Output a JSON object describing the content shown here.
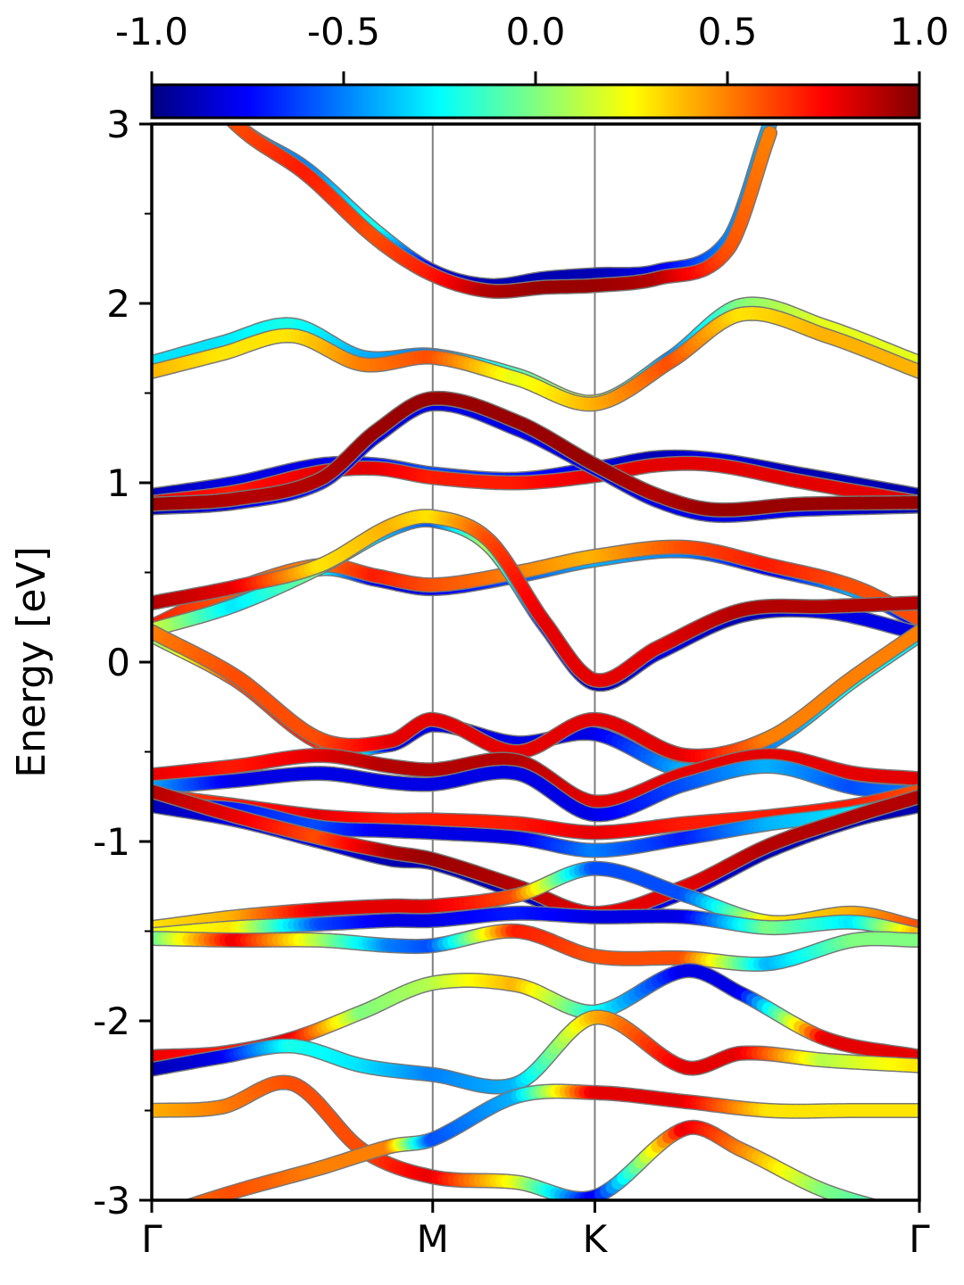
{
  "chart_data": {
    "type": "line",
    "title": "",
    "xlabel": "",
    "ylabel": "Energy [eV]",
    "ylim": [
      -3,
      3
    ],
    "yticks": [
      -3,
      -2,
      -1,
      0,
      1,
      2,
      3
    ],
    "yticks_minor": [
      -2.5,
      -1.5,
      -0.5,
      0.5,
      1.5,
      2.5
    ],
    "kpath": {
      "labels": [
        "Γ",
        "M",
        "K",
        "Γ"
      ],
      "positions": [
        0,
        1,
        1.577,
        2.732
      ]
    },
    "colorbar": {
      "colormap": "jet",
      "range": [
        -1.0,
        1.0
      ],
      "ticks": [
        "-1.0",
        "-0.5",
        "0.0",
        "0.5",
        "1.0"
      ],
      "placement": "top"
    },
    "grid": false,
    "series": [
      {
        "x": [
          0.1,
          0.3,
          0.55,
          0.8,
          1.0,
          1.2,
          1.4,
          1.577,
          1.8,
          2.05,
          2.2
        ],
        "y": [
          3.4,
          3.0,
          2.75,
          2.4,
          2.18,
          2.1,
          2.14,
          2.16,
          2.18,
          2.35,
          3.0
        ],
        "c": [
          -0.6,
          -0.4,
          -0.5,
          -0.2,
          -0.8,
          -0.9,
          -0.9,
          -0.9,
          -0.8,
          -0.5,
          -0.4
        ]
      },
      {
        "x": [
          0.1,
          0.3,
          0.55,
          0.8,
          1.0,
          1.2,
          1.4,
          1.577,
          1.8,
          2.05,
          2.2
        ],
        "y": [
          3.4,
          3.0,
          2.72,
          2.36,
          2.16,
          2.07,
          2.09,
          2.1,
          2.14,
          2.3,
          2.95
        ],
        "c": [
          0.7,
          0.6,
          0.7,
          0.6,
          0.7,
          0.9,
          0.95,
          0.95,
          0.9,
          0.6,
          0.5
        ]
      },
      {
        "x": [
          0,
          0.25,
          0.5,
          0.75,
          1.0,
          1.3,
          1.577,
          1.85,
          2.1,
          2.4,
          2.732
        ],
        "y": [
          1.67,
          1.78,
          1.88,
          1.7,
          1.71,
          1.6,
          1.45,
          1.7,
          1.99,
          1.87,
          1.67
        ],
        "c": [
          -0.3,
          -0.3,
          -0.2,
          -0.4,
          -0.5,
          -0.1,
          0.2,
          -0.5,
          0.0,
          0.2,
          0.2
        ]
      },
      {
        "x": [
          0,
          0.25,
          0.5,
          0.75,
          1.0,
          1.3,
          1.577,
          1.85,
          2.1,
          2.4,
          2.732
        ],
        "y": [
          1.62,
          1.72,
          1.82,
          1.66,
          1.7,
          1.58,
          1.44,
          1.68,
          1.94,
          1.82,
          1.62
        ],
        "c": [
          0.4,
          0.3,
          0.3,
          0.5,
          0.6,
          0.2,
          0.4,
          0.6,
          0.3,
          0.4,
          0.4
        ]
      },
      {
        "x": [
          0,
          0.3,
          0.6,
          0.8,
          1.0,
          1.3,
          1.577,
          1.8,
          2.0,
          2.3,
          2.732
        ],
        "y": [
          0.93,
          1.0,
          1.1,
          1.1,
          1.05,
          1.02,
          1.08,
          1.14,
          1.13,
          1.05,
          0.93
        ],
        "c": [
          -0.9,
          -0.8,
          -0.8,
          -0.7,
          -0.6,
          -0.7,
          -0.8,
          -0.9,
          -0.8,
          -0.9,
          -0.9
        ]
      },
      {
        "x": [
          0,
          0.3,
          0.6,
          0.8,
          1.0,
          1.3,
          1.577,
          1.8,
          2.0,
          2.3,
          2.732
        ],
        "y": [
          0.89,
          0.95,
          1.06,
          1.08,
          1.03,
          1.0,
          1.04,
          1.1,
          1.1,
          1.01,
          0.89
        ],
        "c": [
          0.8,
          0.7,
          0.8,
          0.8,
          0.7,
          0.7,
          0.8,
          0.8,
          0.8,
          0.8,
          0.8
        ]
      },
      {
        "x": [
          0,
          0.3,
          0.6,
          0.8,
          1.0,
          1.3,
          1.577,
          1.8,
          2.0,
          2.3,
          2.732
        ],
        "y": [
          0.86,
          0.89,
          1.0,
          1.26,
          1.44,
          1.3,
          1.08,
          0.9,
          0.82,
          0.85,
          0.87
        ],
        "c": [
          -0.9,
          -0.8,
          -0.7,
          -0.8,
          -0.8,
          -0.8,
          -0.8,
          -0.8,
          -0.8,
          -0.8,
          -0.9
        ]
      },
      {
        "x": [
          0,
          0.3,
          0.6,
          0.8,
          1.0,
          1.3,
          1.577,
          1.8,
          2.0,
          2.3,
          2.732
        ],
        "y": [
          0.88,
          0.91,
          1.02,
          1.29,
          1.47,
          1.34,
          1.1,
          0.93,
          0.85,
          0.88,
          0.89
        ],
        "c": [
          0.95,
          0.9,
          0.9,
          0.95,
          0.95,
          0.95,
          0.95,
          0.9,
          0.95,
          0.95,
          0.95
        ]
      },
      {
        "x": [
          0,
          0.25,
          0.6,
          0.8,
          1.0,
          1.3,
          1.577,
          1.9,
          2.2,
          2.5,
          2.732
        ],
        "y": [
          0.18,
          0.35,
          0.52,
          0.46,
          0.41,
          0.48,
          0.57,
          0.62,
          0.52,
          0.4,
          0.22
        ],
        "c": [
          -0.8,
          -0.7,
          -0.2,
          -0.8,
          -0.8,
          -0.6,
          -0.4,
          -0.5,
          -0.8,
          -0.4,
          -0.8
        ]
      },
      {
        "x": [
          0,
          0.25,
          0.6,
          0.8,
          1.0,
          1.3,
          1.577,
          1.9,
          2.2,
          2.5,
          2.732
        ],
        "y": [
          0.2,
          0.38,
          0.54,
          0.48,
          0.43,
          0.5,
          0.59,
          0.64,
          0.54,
          0.42,
          0.24
        ],
        "c": [
          0.7,
          0.6,
          0.5,
          0.7,
          0.6,
          0.5,
          0.4,
          0.6,
          0.7,
          0.6,
          0.6
        ]
      },
      {
        "x": [
          0,
          0.3,
          0.6,
          0.85,
          1.0,
          1.2,
          1.4,
          1.577,
          1.8,
          2.1,
          2.4,
          2.732
        ],
        "y": [
          0.18,
          0.32,
          0.53,
          0.74,
          0.79,
          0.65,
          0.2,
          -0.12,
          0.05,
          0.26,
          0.28,
          0.16
        ],
        "c": [
          0.2,
          -0.3,
          0.0,
          -0.4,
          -0.6,
          0.1,
          -0.7,
          -0.9,
          -0.8,
          -0.9,
          -0.8,
          -0.8
        ]
      },
      {
        "x": [
          0,
          0.3,
          0.6,
          0.85,
          1.0,
          1.2,
          1.4,
          1.577,
          1.8,
          2.1,
          2.4,
          2.732
        ],
        "y": [
          0.33,
          0.42,
          0.54,
          0.76,
          0.81,
          0.68,
          0.22,
          -0.1,
          0.08,
          0.29,
          0.31,
          0.33
        ],
        "c": [
          0.9,
          0.8,
          0.3,
          0.4,
          0.3,
          0.6,
          0.8,
          0.8,
          0.8,
          0.9,
          0.9,
          0.9
        ]
      },
      {
        "x": [
          0,
          0.3,
          0.6,
          0.85,
          1.0,
          1.3,
          1.577,
          1.9,
          2.2,
          2.5,
          2.732
        ],
        "y": [
          0.15,
          -0.1,
          -0.45,
          -0.46,
          -0.35,
          -0.45,
          -0.4,
          -0.6,
          -0.45,
          -0.1,
          0.15
        ],
        "c": [
          0.0,
          0.6,
          0.7,
          -0.8,
          -0.8,
          -0.8,
          -0.8,
          -0.4,
          -0.5,
          -0.2,
          -0.3
        ]
      },
      {
        "x": [
          0,
          0.3,
          0.6,
          0.85,
          1.0,
          1.3,
          1.577,
          1.9,
          2.2,
          2.5,
          2.732
        ],
        "y": [
          0.17,
          -0.08,
          -0.43,
          -0.44,
          -0.32,
          -0.5,
          -0.32,
          -0.52,
          -0.42,
          -0.08,
          0.17
        ],
        "c": [
          0.5,
          0.6,
          0.6,
          0.8,
          0.8,
          0.8,
          0.8,
          0.8,
          0.5,
          0.5,
          0.5
        ]
      },
      {
        "x": [
          0,
          0.3,
          0.6,
          0.85,
          1.0,
          1.3,
          1.577,
          1.9,
          2.2,
          2.5,
          2.732
        ],
        "y": [
          -0.63,
          -0.58,
          -0.52,
          -0.58,
          -0.6,
          -0.55,
          -0.78,
          -0.62,
          -0.52,
          -0.62,
          -0.65
        ],
        "c": [
          0.8,
          0.7,
          0.8,
          0.9,
          0.9,
          0.9,
          0.8,
          0.8,
          0.8,
          0.8,
          0.8
        ]
      },
      {
        "x": [
          0,
          0.3,
          0.6,
          0.85,
          1.0,
          1.3,
          1.577,
          1.9,
          2.2,
          2.5,
          2.732
        ],
        "y": [
          -0.7,
          -0.66,
          -0.62,
          -0.67,
          -0.68,
          -0.62,
          -0.85,
          -0.68,
          -0.58,
          -0.7,
          -0.73
        ],
        "c": [
          -0.4,
          -0.8,
          -0.8,
          -0.8,
          -0.8,
          -0.8,
          -0.8,
          -0.6,
          -0.4,
          -0.6,
          -0.5
        ]
      },
      {
        "x": [
          0,
          0.3,
          0.6,
          0.85,
          1.0,
          1.3,
          1.577,
          1.9,
          2.2,
          2.5,
          2.732
        ],
        "y": [
          -0.74,
          -0.8,
          -0.86,
          -0.88,
          -0.88,
          -0.9,
          -0.95,
          -0.9,
          -0.86,
          -0.8,
          -0.72
        ],
        "c": [
          0.6,
          0.7,
          0.8,
          0.7,
          0.7,
          0.7,
          0.8,
          0.7,
          0.7,
          0.7,
          0.6
        ]
      },
      {
        "x": [
          0,
          0.3,
          0.6,
          0.85,
          1.0,
          1.3,
          1.577,
          1.9,
          2.2,
          2.5,
          2.732
        ],
        "y": [
          -0.8,
          -0.82,
          -0.92,
          -0.94,
          -0.95,
          -0.98,
          -1.05,
          -0.98,
          -0.9,
          -0.84,
          -0.76
        ],
        "c": [
          -0.8,
          -0.7,
          -0.6,
          -0.8,
          -0.8,
          -0.8,
          -0.5,
          -0.7,
          -0.4,
          -0.3,
          -0.4
        ]
      },
      {
        "x": [
          0,
          0.3,
          0.6,
          0.85,
          1.0,
          1.3,
          1.577,
          1.9,
          2.2,
          2.5,
          2.732
        ],
        "y": [
          -0.8,
          -0.88,
          -1.0,
          -1.1,
          -1.12,
          -1.28,
          -1.42,
          -1.28,
          -1.05,
          -0.88,
          -0.8
        ],
        "c": [
          -0.9,
          -0.8,
          -0.8,
          -0.9,
          -0.9,
          -0.9,
          -0.8,
          -0.8,
          -0.9,
          -0.9,
          -0.9
        ]
      },
      {
        "x": [
          0,
          0.3,
          0.6,
          0.85,
          1.0,
          1.3,
          1.577,
          1.9,
          2.2,
          2.5,
          2.732
        ],
        "y": [
          -0.72,
          -0.86,
          -0.98,
          -1.06,
          -1.1,
          -1.25,
          -1.4,
          -1.25,
          -1.02,
          -0.86,
          -0.75
        ],
        "c": [
          0.9,
          0.8,
          0.6,
          0.9,
          0.95,
          0.9,
          0.8,
          0.8,
          0.9,
          0.9,
          0.9
        ]
      },
      {
        "x": [
          0,
          0.3,
          0.6,
          0.85,
          1.0,
          1.3,
          1.577,
          1.9,
          2.2,
          2.5,
          2.732
        ],
        "y": [
          -1.48,
          -1.42,
          -1.38,
          -1.36,
          -1.36,
          -1.3,
          -1.15,
          -1.3,
          -1.45,
          -1.4,
          -1.48
        ],
        "c": [
          0.3,
          0.4,
          0.8,
          0.8,
          0.8,
          0.6,
          -0.6,
          -0.6,
          0.3,
          0.4,
          0.6
        ]
      },
      {
        "x": [
          0,
          0.3,
          0.6,
          0.85,
          1.0,
          1.3,
          1.577,
          1.9,
          2.2,
          2.5,
          2.732
        ],
        "y": [
          -1.52,
          -1.48,
          -1.46,
          -1.44,
          -1.44,
          -1.4,
          -1.42,
          -1.42,
          -1.48,
          -1.45,
          -1.52
        ],
        "c": [
          0.2,
          0.3,
          -0.6,
          -0.8,
          -0.8,
          -0.7,
          -0.8,
          -0.8,
          0.0,
          -0.3,
          0.4
        ]
      },
      {
        "x": [
          0,
          0.3,
          0.6,
          0.85,
          1.0,
          1.3,
          1.577,
          1.9,
          2.2,
          2.5,
          2.732
        ],
        "y": [
          -1.54,
          -1.55,
          -1.55,
          -1.58,
          -1.58,
          -1.5,
          -1.64,
          -1.65,
          -1.68,
          -1.55,
          -1.55
        ],
        "c": [
          -0.1,
          0.8,
          0.1,
          -0.5,
          -0.6,
          0.7,
          0.6,
          0.6,
          -0.4,
          0.0,
          0.0
        ]
      },
      {
        "x": [
          0,
          0.25,
          0.5,
          0.75,
          1.0,
          1.3,
          1.577,
          1.9,
          2.1,
          2.4,
          2.732
        ],
        "y": [
          -2.2,
          -2.18,
          -2.1,
          -1.95,
          -1.79,
          -1.8,
          -1.95,
          -1.72,
          -1.85,
          -2.1,
          -2.2
        ],
        "c": [
          0.8,
          0.7,
          0.8,
          0.0,
          0.1,
          0.4,
          -0.2,
          -0.8,
          -0.8,
          0.8,
          0.8
        ]
      },
      {
        "x": [
          0,
          0.25,
          0.5,
          0.75,
          1.0,
          1.3,
          1.577,
          1.9,
          2.1,
          2.4,
          2.732
        ],
        "y": [
          -2.27,
          -2.2,
          -2.14,
          -2.25,
          -2.3,
          -2.35,
          -1.98,
          -2.26,
          -2.18,
          -2.22,
          -2.25
        ],
        "c": [
          -0.9,
          -0.8,
          -0.2,
          -0.3,
          -0.5,
          -0.4,
          0.4,
          0.8,
          0.8,
          0.1,
          0.3
        ]
      },
      {
        "x": [
          0,
          0.25,
          0.5,
          0.75,
          1.0,
          1.3,
          1.577,
          1.9,
          2.1,
          2.4,
          2.732
        ],
        "y": [
          -2.5,
          -2.48,
          -2.35,
          -2.72,
          -2.87,
          -2.9,
          -2.98,
          -2.6,
          -2.72,
          -2.95,
          -3.1
        ],
        "c": [
          0.4,
          0.5,
          0.6,
          0.6,
          0.8,
          0.2,
          -0.8,
          0.8,
          0.5,
          0.0,
          -0.2
        ]
      },
      {
        "x": [
          0,
          0.3,
          0.6,
          0.85,
          1.0,
          1.3,
          1.577,
          1.9,
          2.2,
          2.5,
          2.732
        ],
        "y": [
          -3.1,
          -2.95,
          -2.82,
          -2.7,
          -2.66,
          -2.42,
          -2.4,
          -2.45,
          -2.5,
          -2.5,
          -2.5
        ],
        "c": [
          0.5,
          0.6,
          0.5,
          0.5,
          -0.6,
          -0.4,
          0.8,
          0.8,
          0.3,
          0.3,
          0.3
        ]
      }
    ]
  }
}
